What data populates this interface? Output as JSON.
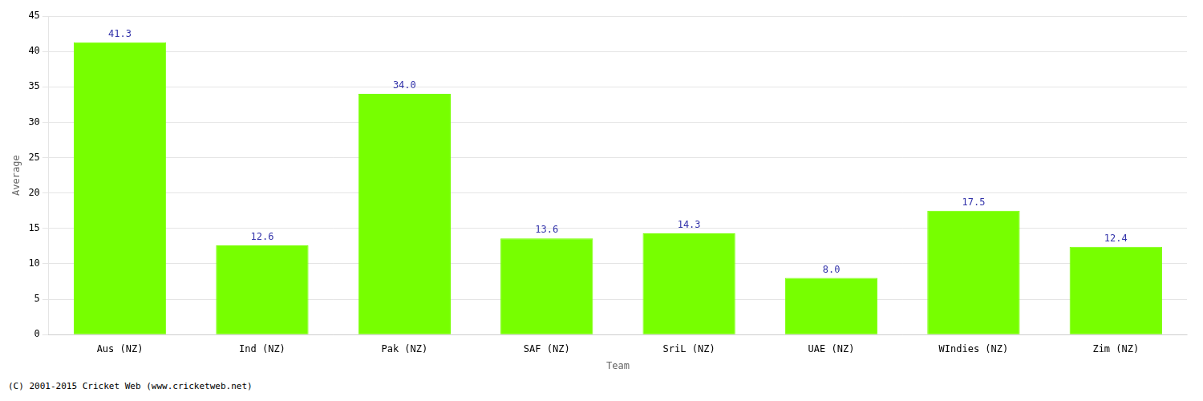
{
  "chart_data": {
    "type": "bar",
    "categories": [
      "Aus (NZ)",
      "Ind (NZ)",
      "Pak (NZ)",
      "SAF (NZ)",
      "SriL (NZ)",
      "UAE (NZ)",
      "WIndies (NZ)",
      "Zim (NZ)"
    ],
    "values": [
      41.3,
      12.6,
      34.0,
      13.6,
      14.3,
      8.0,
      17.5,
      12.4
    ],
    "value_labels": [
      "41.3",
      "12.6",
      "34.0",
      "13.6",
      "14.3",
      "8.0",
      "17.5",
      "12.4"
    ],
    "data_labels": true,
    "color": "#77ff00",
    "xlabel": "Team",
    "ylabel": "Average",
    "ylim": [
      0,
      45
    ],
    "yticks": [
      0,
      5,
      10,
      15,
      20,
      25,
      30,
      35,
      40,
      45
    ],
    "grid": true,
    "annotations": [
      "(C) 2001-2015 Cricket Web (www.cricketweb.net)"
    ]
  }
}
